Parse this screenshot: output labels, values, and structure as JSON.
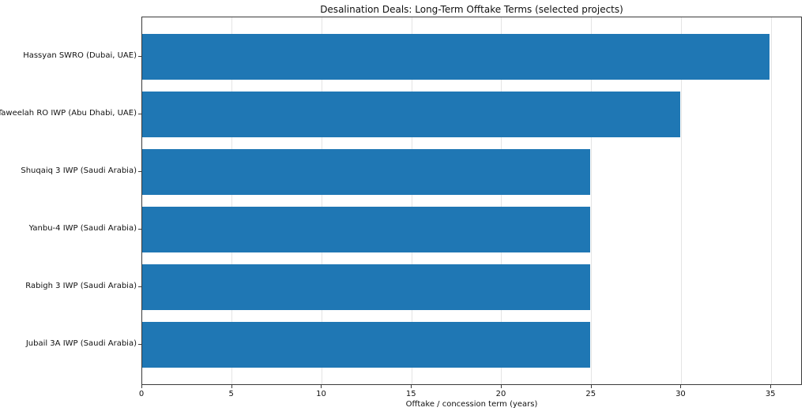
{
  "chart_data": {
    "type": "bar",
    "orientation": "horizontal",
    "title": "Desalination Deals: Long-Term Offtake Terms (selected projects)",
    "xlabel": "Offtake / concession term (years)",
    "ylabel": "",
    "categories": [
      "Hassyan SWRO (Dubai, UAE)",
      "Taweelah RO IWP (Abu Dhabi, UAE)",
      "Shuqaiq 3 IWP (Saudi Arabia)",
      "Yanbu-4 IWP (Saudi Arabia)",
      "Rabigh 3 IWP (Saudi Arabia)",
      "Jubail 3A IWP (Saudi Arabia)"
    ],
    "values": [
      35,
      30,
      25,
      25,
      25,
      25
    ],
    "xticks": [
      0,
      5,
      10,
      15,
      20,
      25,
      30,
      35
    ],
    "xlim": [
      0,
      36.75
    ],
    "grid": true,
    "legend": "none",
    "bar_color": "#1f77b4",
    "grid_color": "#e4e4e4",
    "spine_color": "#3a3a3a",
    "text_color": "#111111"
  }
}
